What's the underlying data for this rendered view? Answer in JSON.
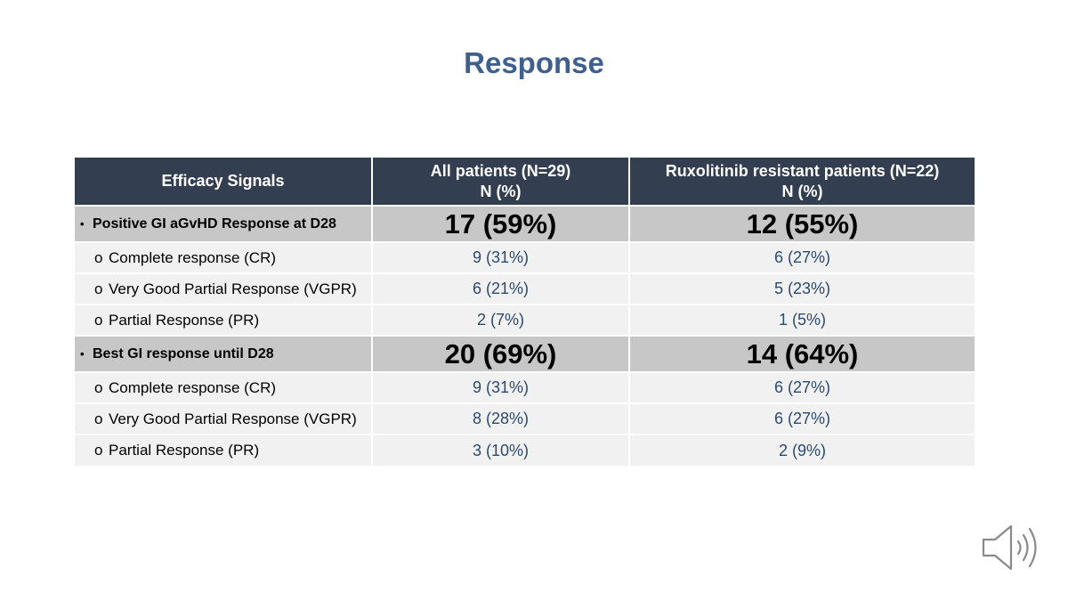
{
  "title": "Response",
  "table": {
    "headers": {
      "col0": "Efficacy Signals",
      "col1_line1": "All patients (N=29)",
      "col1_line2": "N (%)",
      "col2_line1": "Ruxolitinib resistant patients (N=22)",
      "col2_line2": "N (%)"
    },
    "bullet": "•",
    "sub_marker": "o",
    "sections": [
      {
        "label": "Positive GI aGvHD Response at D28",
        "all": "17 (59%)",
        "rux": "12 (55%)",
        "rows": [
          {
            "label": "Complete response (CR)",
            "all": "9 (31%)",
            "rux": "6 (27%)"
          },
          {
            "label": "Very Good Partial Response (VGPR)",
            "all": "6 (21%)",
            "rux": "5 (23%)"
          },
          {
            "label": "Partial Response (PR)",
            "all": "2 (7%)",
            "rux": "1 (5%)"
          }
        ]
      },
      {
        "label": "Best GI response until D28",
        "all": "20 (69%)",
        "rux": "14 (64%)",
        "rows": [
          {
            "label": "Complete response (CR)",
            "all": "9 (31%)",
            "rux": "6 (27%)"
          },
          {
            "label": "Very Good Partial Response (VGPR)",
            "all": "8 (28%)",
            "rux": "6 (27%)"
          },
          {
            "label": "Partial Response (PR)",
            "all": "3 (10%)",
            "rux": "2 (9%)"
          }
        ]
      }
    ]
  },
  "speaker_icon": "speaker-icon"
}
